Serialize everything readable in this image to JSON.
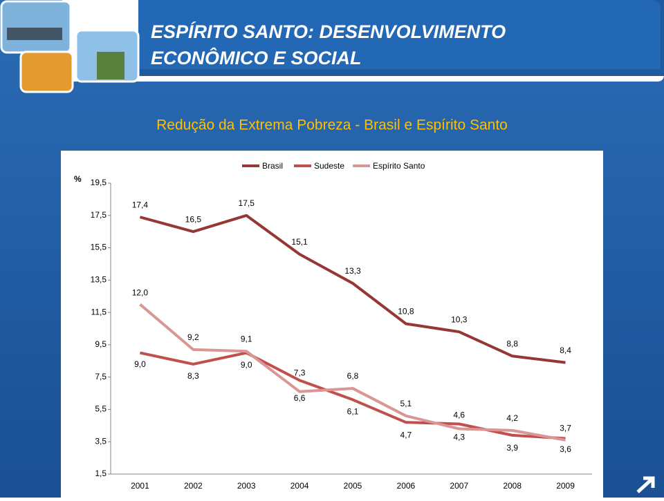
{
  "header": {
    "title_lines": [
      "ESPÍRITO SANTO: DESENVOLVIMENTO",
      "ECONÔMICO E SOCIAL"
    ]
  },
  "chart_data": {
    "type": "line",
    "title": "Redução da Extrema Pobreza - Brasil e Espírito Santo",
    "y_label": "%",
    "categories": [
      "2001",
      "2002",
      "2003",
      "2004",
      "2005",
      "2006",
      "2007",
      "2008",
      "2009"
    ],
    "series": [
      {
        "name": "Brasil",
        "color": "#953735",
        "values": [
          17.4,
          16.5,
          17.5,
          15.1,
          13.3,
          10.8,
          10.3,
          8.8,
          8.4
        ],
        "value_labels": [
          "17,4",
          "16,5",
          "17,5",
          "15,1",
          "13,3",
          "10,8",
          "10,3",
          "8,8",
          "8,4"
        ]
      },
      {
        "name": "Sudeste",
        "color": "#c0504d",
        "values": [
          9.0,
          8.3,
          9.0,
          7.3,
          6.1,
          4.7,
          4.6,
          3.9,
          3.7
        ],
        "value_labels": [
          "9,0",
          "8,3",
          "9,0",
          "7,3",
          "6,1",
          "4,7",
          "4,6",
          "3,9",
          "3,7"
        ]
      },
      {
        "name": "Espírito Santo",
        "color": "#d99694",
        "values": [
          12.0,
          9.2,
          9.1,
          6.6,
          6.8,
          5.1,
          4.3,
          4.2,
          3.6
        ],
        "value_labels": [
          "12,0",
          "9,2",
          "9,1",
          "6,6",
          "6,8",
          "5,1",
          "4,3",
          "4,2",
          "3,6"
        ]
      }
    ],
    "ylim": [
      1.5,
      19.5
    ],
    "yticks": [
      {
        "value": 1.5,
        "label": "1,5"
      },
      {
        "value": 3.5,
        "label": "3,5"
      },
      {
        "value": 5.5,
        "label": "5,5"
      },
      {
        "value": 7.5,
        "label": "7,5"
      },
      {
        "value": 9.5,
        "label": "9,5"
      },
      {
        "value": 11.5,
        "label": "11,5"
      },
      {
        "value": 13.5,
        "label": "13,5"
      },
      {
        "value": 15.5,
        "label": "15,5"
      },
      {
        "value": 17.5,
        "label": "17,5"
      },
      {
        "value": 19.5,
        "label": "19,5"
      }
    ],
    "grid": false,
    "legend": "top"
  }
}
